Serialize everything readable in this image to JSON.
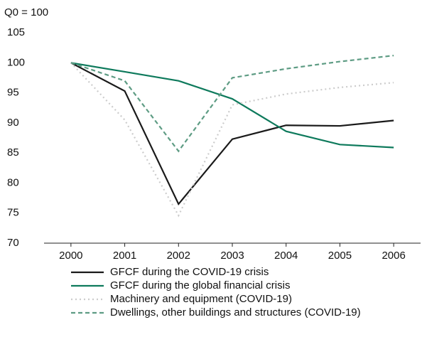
{
  "chart_data": {
    "type": "line",
    "y_label": "Q0 = 100",
    "categories": [
      "2000",
      "2001",
      "2002",
      "2003",
      "2004",
      "2005",
      "2006"
    ],
    "series": [
      {
        "name": "GFCF during the COVID-19 crisis",
        "color": "#1a1a1a",
        "dash": "solid",
        "values": [
          100,
          95.3,
          76.5,
          87.3,
          89.6,
          89.5,
          90.4
        ]
      },
      {
        "name": "GFCF during the global financial crisis",
        "color": "#0e7a5c",
        "dash": "solid",
        "values": [
          100,
          98.5,
          97,
          94,
          88.6,
          86.4,
          85.9
        ]
      },
      {
        "name": "Machinery and equipment (COVID-19)",
        "color": "#cccccc",
        "dash": "dotted",
        "values": [
          100,
          90.5,
          74.6,
          93,
          94.8,
          95.9,
          96.7
        ]
      },
      {
        "name": "Dwellings, other buildings and structures (COVID-19)",
        "color": "#5e9c84",
        "dash": "dashed",
        "values": [
          100,
          97,
          85.3,
          97.5,
          99,
          100.2,
          101.2
        ]
      }
    ],
    "ylim": [
      70,
      105
    ],
    "yticks": [
      70,
      75,
      80,
      85,
      90,
      95,
      100,
      105
    ],
    "grid": false
  }
}
